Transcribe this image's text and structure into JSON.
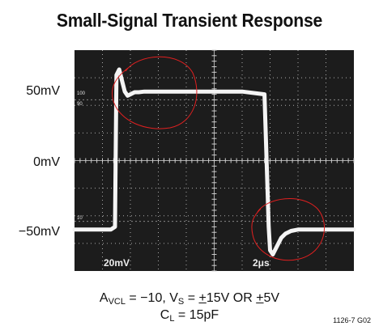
{
  "title": "Small-Signal Transient Response",
  "y_labels": [
    "50mV",
    "0mV",
    "−50mV"
  ],
  "scope_labels": {
    "volts_per_div": "20mV",
    "time_per_div": "2μs",
    "pct_100": "100",
    "pct_90": "90",
    "pct_10": "10"
  },
  "conditions": {
    "avcl_sym": "A",
    "avcl_sub": "VCL",
    "avcl_val": " = −10, V",
    "vs_sub": "S",
    "vs_eq": " = ",
    "pm1": "+",
    "vs_mid": "15V OR ",
    "pm2": "+",
    "vs_end": "5V",
    "cl_sym": "C",
    "cl_sub": "L",
    "cl_val": " = 15pF"
  },
  "figure_id": "1126-7 G02",
  "colors": {
    "screen": "#1c1c1c",
    "grid": "#cfcfcf",
    "trace": "#f4f4f4",
    "annotation": "#e02020"
  },
  "chart_data": {
    "type": "line",
    "title": "Small-Signal Transient Response",
    "xlabel": "",
    "ylabel": "",
    "x_unit": "μs",
    "y_unit": "mV",
    "xlim": [
      0,
      20
    ],
    "ylim": [
      -80,
      80
    ],
    "x_div": 2,
    "y_div": 20,
    "grid": true,
    "y_ticks": [
      50,
      0,
      -50
    ],
    "series": [
      {
        "name": "",
        "x": [
          0,
          2.6,
          2.9,
          3.0,
          3.2,
          3.4,
          3.6,
          3.8,
          4.0,
          4.3,
          4.6,
          5.0,
          5.6,
          6.5,
          8,
          10.5,
          10.8,
          12,
          13.6,
          13.9,
          14.0,
          14.2,
          14.5,
          14.8,
          15.1,
          15.5,
          16.0,
          16.8,
          18,
          20
        ],
        "y": [
          -50,
          -50,
          -48,
          62,
          66,
          58,
          50,
          47,
          48,
          49.5,
          49.5,
          50,
          50,
          50,
          50,
          50,
          50,
          50,
          48,
          -48,
          -65,
          -68,
          -62,
          -56,
          -53,
          -51,
          -50,
          -50,
          -50,
          -50
        ]
      }
    ]
  }
}
